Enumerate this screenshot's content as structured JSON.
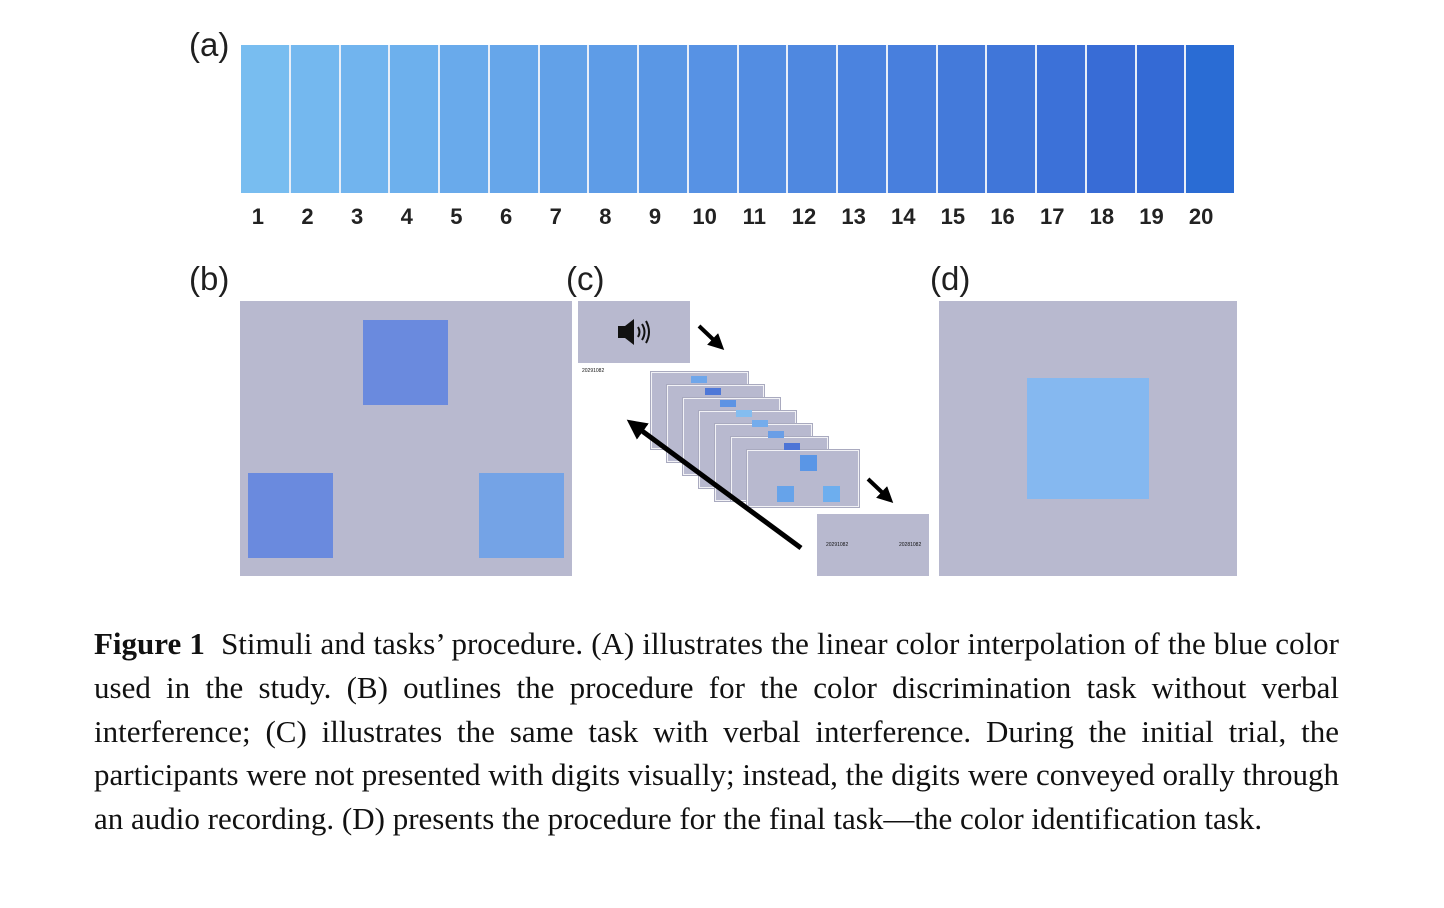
{
  "panels": {
    "a": "(a)",
    "b": "(b)",
    "c": "(c)",
    "d": "(d)"
  },
  "palette": {
    "labels": [
      "1",
      "2",
      "3",
      "4",
      "5",
      "6",
      "7",
      "8",
      "9",
      "10",
      "11",
      "12",
      "13",
      "14",
      "15",
      "16",
      "17",
      "18",
      "19",
      "20"
    ],
    "colors": [
      "#78bdf0",
      "#74b8ef",
      "#71b4ee",
      "#6db0ed",
      "#69aaeb",
      "#66a6ea",
      "#62a1e8",
      "#5e9ce7",
      "#5a97e5",
      "#5792e4",
      "#538de2",
      "#4f88e0",
      "#4b83df",
      "#487fdd",
      "#447ada",
      "#4076d9",
      "#3c71d8",
      "#386cd6",
      "#346ad5",
      "#2a6cd4"
    ]
  },
  "panel_b": {
    "square_colors": [
      "#6a8ade",
      "#6a8ade",
      "#74a3e6"
    ]
  },
  "panel_c": {
    "digits_top": "20291082",
    "digits_bottom_left": "20291082",
    "digits_bottom_right": "20281082",
    "speaker_icon": "speaker-icon"
  },
  "panel_d": {
    "square_color": "#85b8f0"
  },
  "caption": {
    "label": "Figure 1",
    "text": "Stimuli and tasks’ procedure. (A) illustrates the linear color interpolation of the blue color used in the study. (B) outlines the procedure for the color discrimination task without verbal interference; (C) illustrates the same task with verbal interference. During the initial trial, the participants were not presented with digits visually; instead, the digits were conveyed orally through an audio recording. (D) presents the procedure for the final task—the color identification task."
  }
}
